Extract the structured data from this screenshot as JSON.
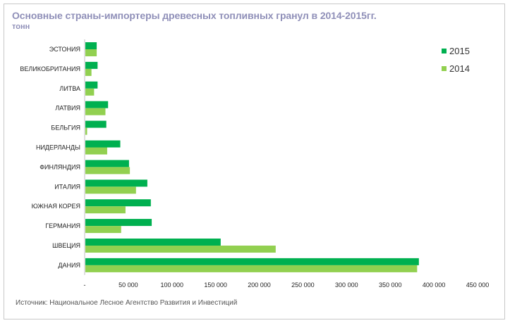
{
  "chart_data": {
    "type": "bar",
    "orientation": "horizontal",
    "title": "Основные страны-импортеры древесных топливных гранул в 2014-2015гг.",
    "subtitle": "тонн",
    "source": "Источник: Национальное Лесное Агентство Развития и Инвестиций",
    "categories": [
      "ЭСТОНИЯ",
      "ВЕЛИКОБРИТАНИЯ",
      "ЛИТВА",
      "ЛАТВИЯ",
      "БЕЛЬГИЯ",
      "НИДЕРЛАНДЫ",
      "ФИНЛЯНДИЯ",
      "ИТАЛИЯ",
      "ЮЖНАЯ КОРЕЯ",
      "ГЕРМАНИЯ",
      "ШВЕЦИЯ",
      "ДАНИЯ"
    ],
    "series": [
      {
        "name": "2015",
        "color": "#00b050",
        "values": [
          13000,
          14000,
          14000,
          26000,
          24000,
          40000,
          50000,
          71000,
          75000,
          76000,
          155000,
          382000
        ]
      },
      {
        "name": "2014",
        "color": "#92d050",
        "values": [
          13000,
          7000,
          10000,
          23000,
          2000,
          25000,
          51000,
          58000,
          46000,
          41000,
          218000,
          380000
        ]
      }
    ],
    "xlim": [
      0,
      450000
    ],
    "xticks": [
      0,
      50000,
      100000,
      150000,
      200000,
      250000,
      300000,
      350000,
      400000,
      450000
    ],
    "xtick_labels": [
      "-",
      "50 000",
      "100 000",
      "150 000",
      "200 000",
      "250 000",
      "300 000",
      "350 000",
      "400 000",
      "450 000"
    ],
    "legend_position": "top-right",
    "grid": false
  }
}
